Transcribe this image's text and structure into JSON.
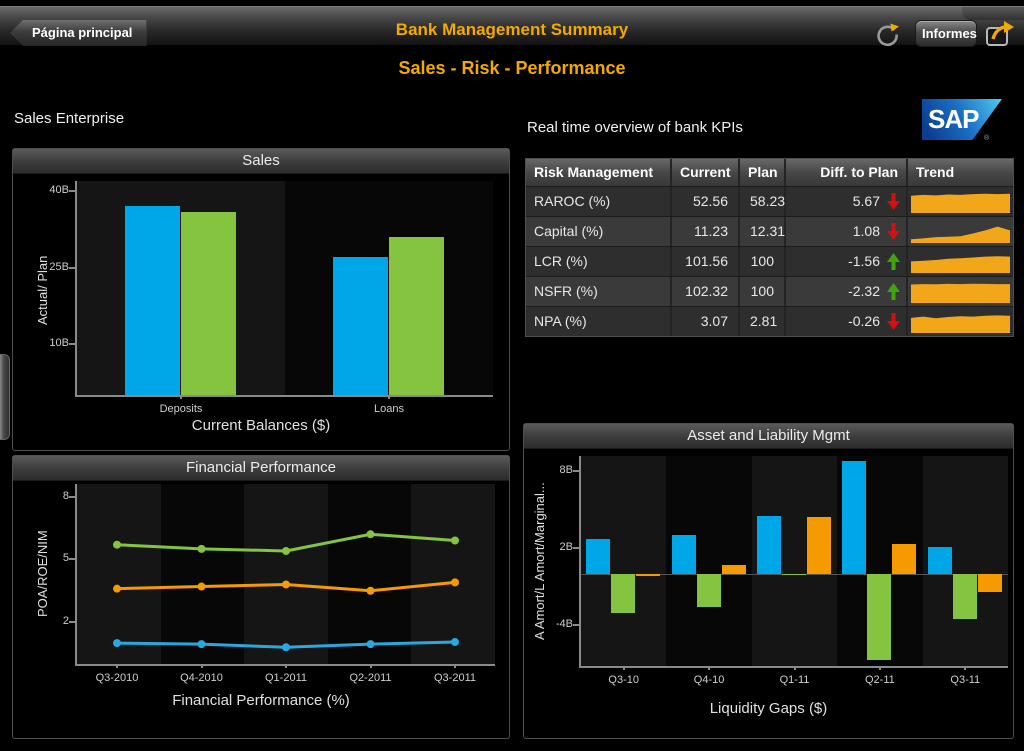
{
  "header": {
    "back_label": "Página principal",
    "title": "Bank Management Summary",
    "reports_label": "Informes",
    "icons": {
      "refresh": "refresh-icon",
      "share": "share-icon",
      "back_arrow": "back-arrow"
    }
  },
  "subtitle": "Sales - Risk - Performance",
  "left_section_label": "Sales Enterprise",
  "right_section_label": "Real time overview of bank KPIs",
  "sap_logo_text": "SAP",
  "colors": {
    "accent_orange": "#F2A900",
    "bar_blue": "#00A7E8",
    "bar_green": "#85C440",
    "bar_orange": "#F59A00",
    "spark_orange": "#F2A71B",
    "arrow_up_green": "#3FA50A",
    "arrow_down_red": "#D01111"
  },
  "risk_table": {
    "headers": [
      "Risk Management",
      "Current",
      "Plan",
      "Diff. to Plan",
      "Trend"
    ],
    "rows": [
      {
        "label": "RAROC (%)",
        "current": "52.56",
        "plan": "58.23",
        "diff": "5.67",
        "trend": "down",
        "sparkline": [
          0.82,
          0.86,
          0.84,
          0.88,
          0.86,
          0.9,
          0.92,
          0.9,
          0.92
        ]
      },
      {
        "label": "Capital (%)",
        "current": "11.23",
        "plan": "12.31",
        "diff": "1.08",
        "trend": "down",
        "sparkline": [
          0.18,
          0.22,
          0.28,
          0.3,
          0.32,
          0.45,
          0.6,
          0.78,
          0.6
        ]
      },
      {
        "label": "LCR (%)",
        "current": "101.56",
        "plan": "100",
        "diff": "-1.56",
        "trend": "up",
        "sparkline": [
          0.55,
          0.58,
          0.62,
          0.68,
          0.7,
          0.74,
          0.78,
          0.8,
          0.78
        ]
      },
      {
        "label": "NSFR (%)",
        "current": "102.32",
        "plan": "100",
        "diff": "-2.32",
        "trend": "up",
        "sparkline": [
          0.88,
          0.9,
          0.89,
          0.91,
          0.9,
          0.92,
          0.91,
          0.9,
          0.9
        ]
      },
      {
        "label": "NPA (%)",
        "current": "3.07",
        "plan": "2.81",
        "diff": "-0.26",
        "trend": "down",
        "sparkline": [
          0.72,
          0.78,
          0.7,
          0.76,
          0.8,
          0.78,
          0.82,
          0.84,
          0.82
        ]
      }
    ]
  },
  "chart_data": [
    {
      "id": "sales",
      "type": "bar",
      "title": "Sales",
      "categories": [
        "Deposits",
        "Loans"
      ],
      "series": [
        {
          "name": "Actual",
          "color": "#00A7E8",
          "values": [
            37,
            27
          ]
        },
        {
          "name": "Plan",
          "color": "#85C440",
          "values": [
            36,
            31
          ]
        }
      ],
      "xlabel": "Current Balances ($)",
      "ylabel": "Actual/ Plan",
      "yticks": [
        {
          "value": 40,
          "label": "40B"
        },
        {
          "value": 25,
          "label": "25B"
        },
        {
          "value": 10,
          "label": "10B"
        }
      ],
      "ylim": [
        0,
        42
      ],
      "grid": false,
      "legend": "none"
    },
    {
      "id": "financial",
      "type": "line",
      "title": "Financial Performance",
      "x": [
        "Q3-2010",
        "Q4-2010",
        "Q1-2011",
        "Q2-2011",
        "Q3-2011"
      ],
      "series": [
        {
          "name": "green-line",
          "color": "#85C440",
          "values": [
            5.7,
            5.5,
            5.4,
            6.2,
            5.9
          ]
        },
        {
          "name": "orange-line",
          "color": "#F59A00",
          "values": [
            3.6,
            3.7,
            3.8,
            3.5,
            3.9
          ]
        },
        {
          "name": "blue-line",
          "color": "#29A8E0",
          "values": [
            1.0,
            0.95,
            0.8,
            0.95,
            1.05
          ]
        }
      ],
      "xlabel": "Financial Performance (%)",
      "ylabel": "POA/ROE/NIM",
      "yticks": [
        {
          "value": 8,
          "label": "8"
        },
        {
          "value": 5,
          "label": "5"
        },
        {
          "value": 2,
          "label": "2"
        }
      ],
      "ylim": [
        0,
        8.6
      ],
      "grid": false,
      "legend": "none"
    },
    {
      "id": "alm",
      "type": "bar",
      "title": "Asset and Liability Mgmt",
      "categories": [
        "Q3-10",
        "Q4-10",
        "Q1-11",
        "Q2-11",
        "Q3-11"
      ],
      "series": [
        {
          "name": "blue",
          "color": "#00A7E8",
          "values": [
            2.7,
            3.0,
            4.5,
            8.8,
            2.1
          ]
        },
        {
          "name": "green",
          "color": "#85C440",
          "values": [
            -3.1,
            -2.6,
            -0.1,
            -6.7,
            -3.5
          ]
        },
        {
          "name": "orange",
          "color": "#F59A00",
          "values": [
            -0.15,
            0.7,
            4.4,
            2.3,
            -1.4
          ]
        }
      ],
      "xlabel": "Liquidity Gaps ($)",
      "ylabel": "A Amort/L Amort/Marginal...",
      "yticks": [
        {
          "value": 8,
          "label": "8B"
        },
        {
          "value": 2,
          "label": "2B"
        },
        {
          "value": -4,
          "label": "-4B"
        }
      ],
      "ylim": [
        -7.2,
        9.2
      ],
      "grid": false,
      "legend": "none"
    }
  ]
}
